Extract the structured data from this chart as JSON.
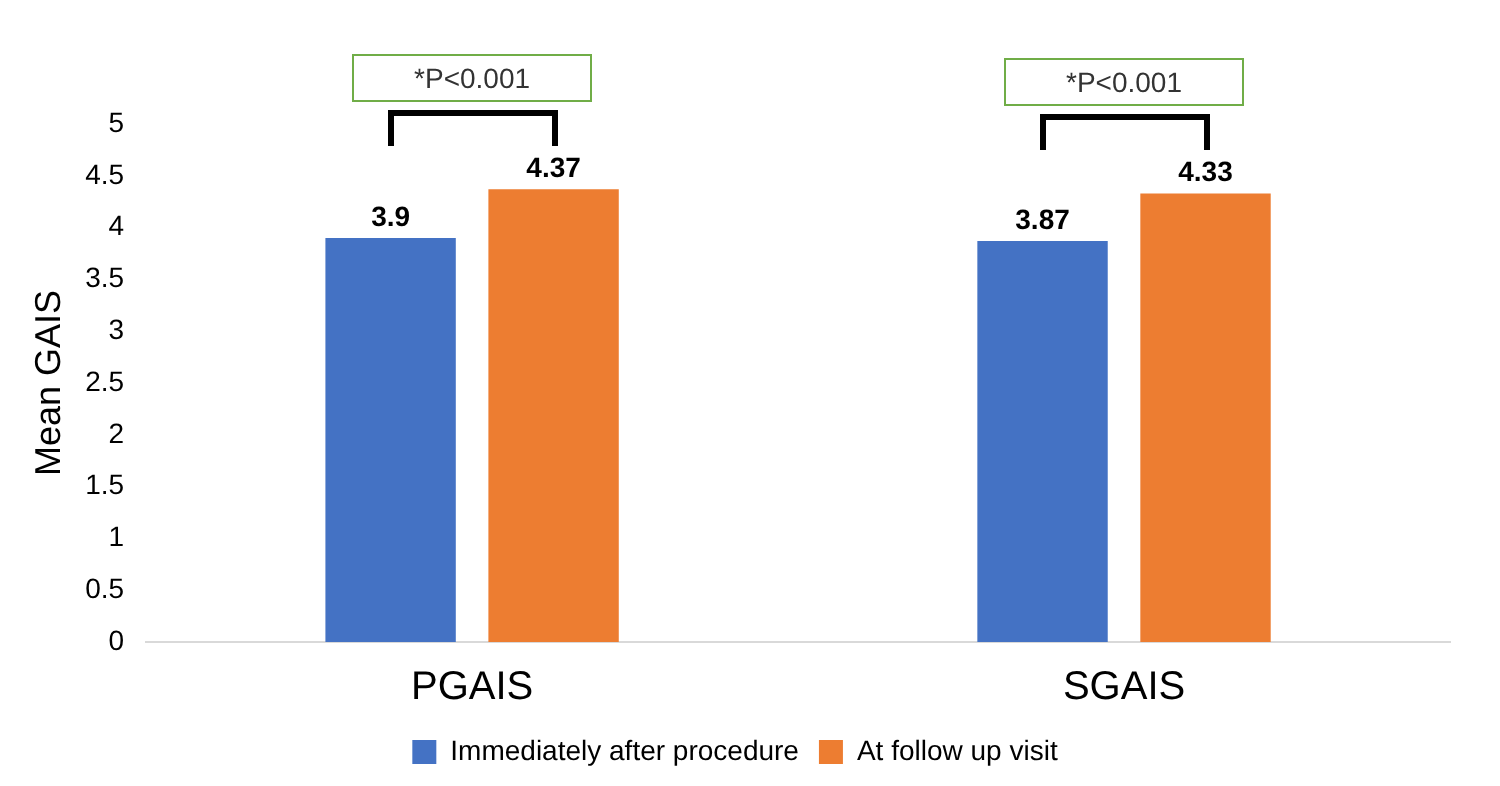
{
  "chart_data": {
    "type": "bar",
    "ylabel": "Mean GAIS",
    "categories": [
      "PGAIS",
      "SGAIS"
    ],
    "series": [
      {
        "name": "Immediately after procedure",
        "color": "#4472c4",
        "values": [
          3.9,
          3.87
        ]
      },
      {
        "name": "At follow up visit",
        "color": "#ed7d31",
        "values": [
          4.37,
          4.33
        ]
      }
    ],
    "ylim": [
      0,
      5
    ],
    "yticks": [
      0,
      0.5,
      1,
      1.5,
      2,
      2.5,
      3,
      3.5,
      4,
      4.5,
      5
    ],
    "grid": false,
    "legend": "bottom",
    "data_labels": true,
    "annotations": [
      "*P<0.001",
      "*P<0.001"
    ]
  }
}
